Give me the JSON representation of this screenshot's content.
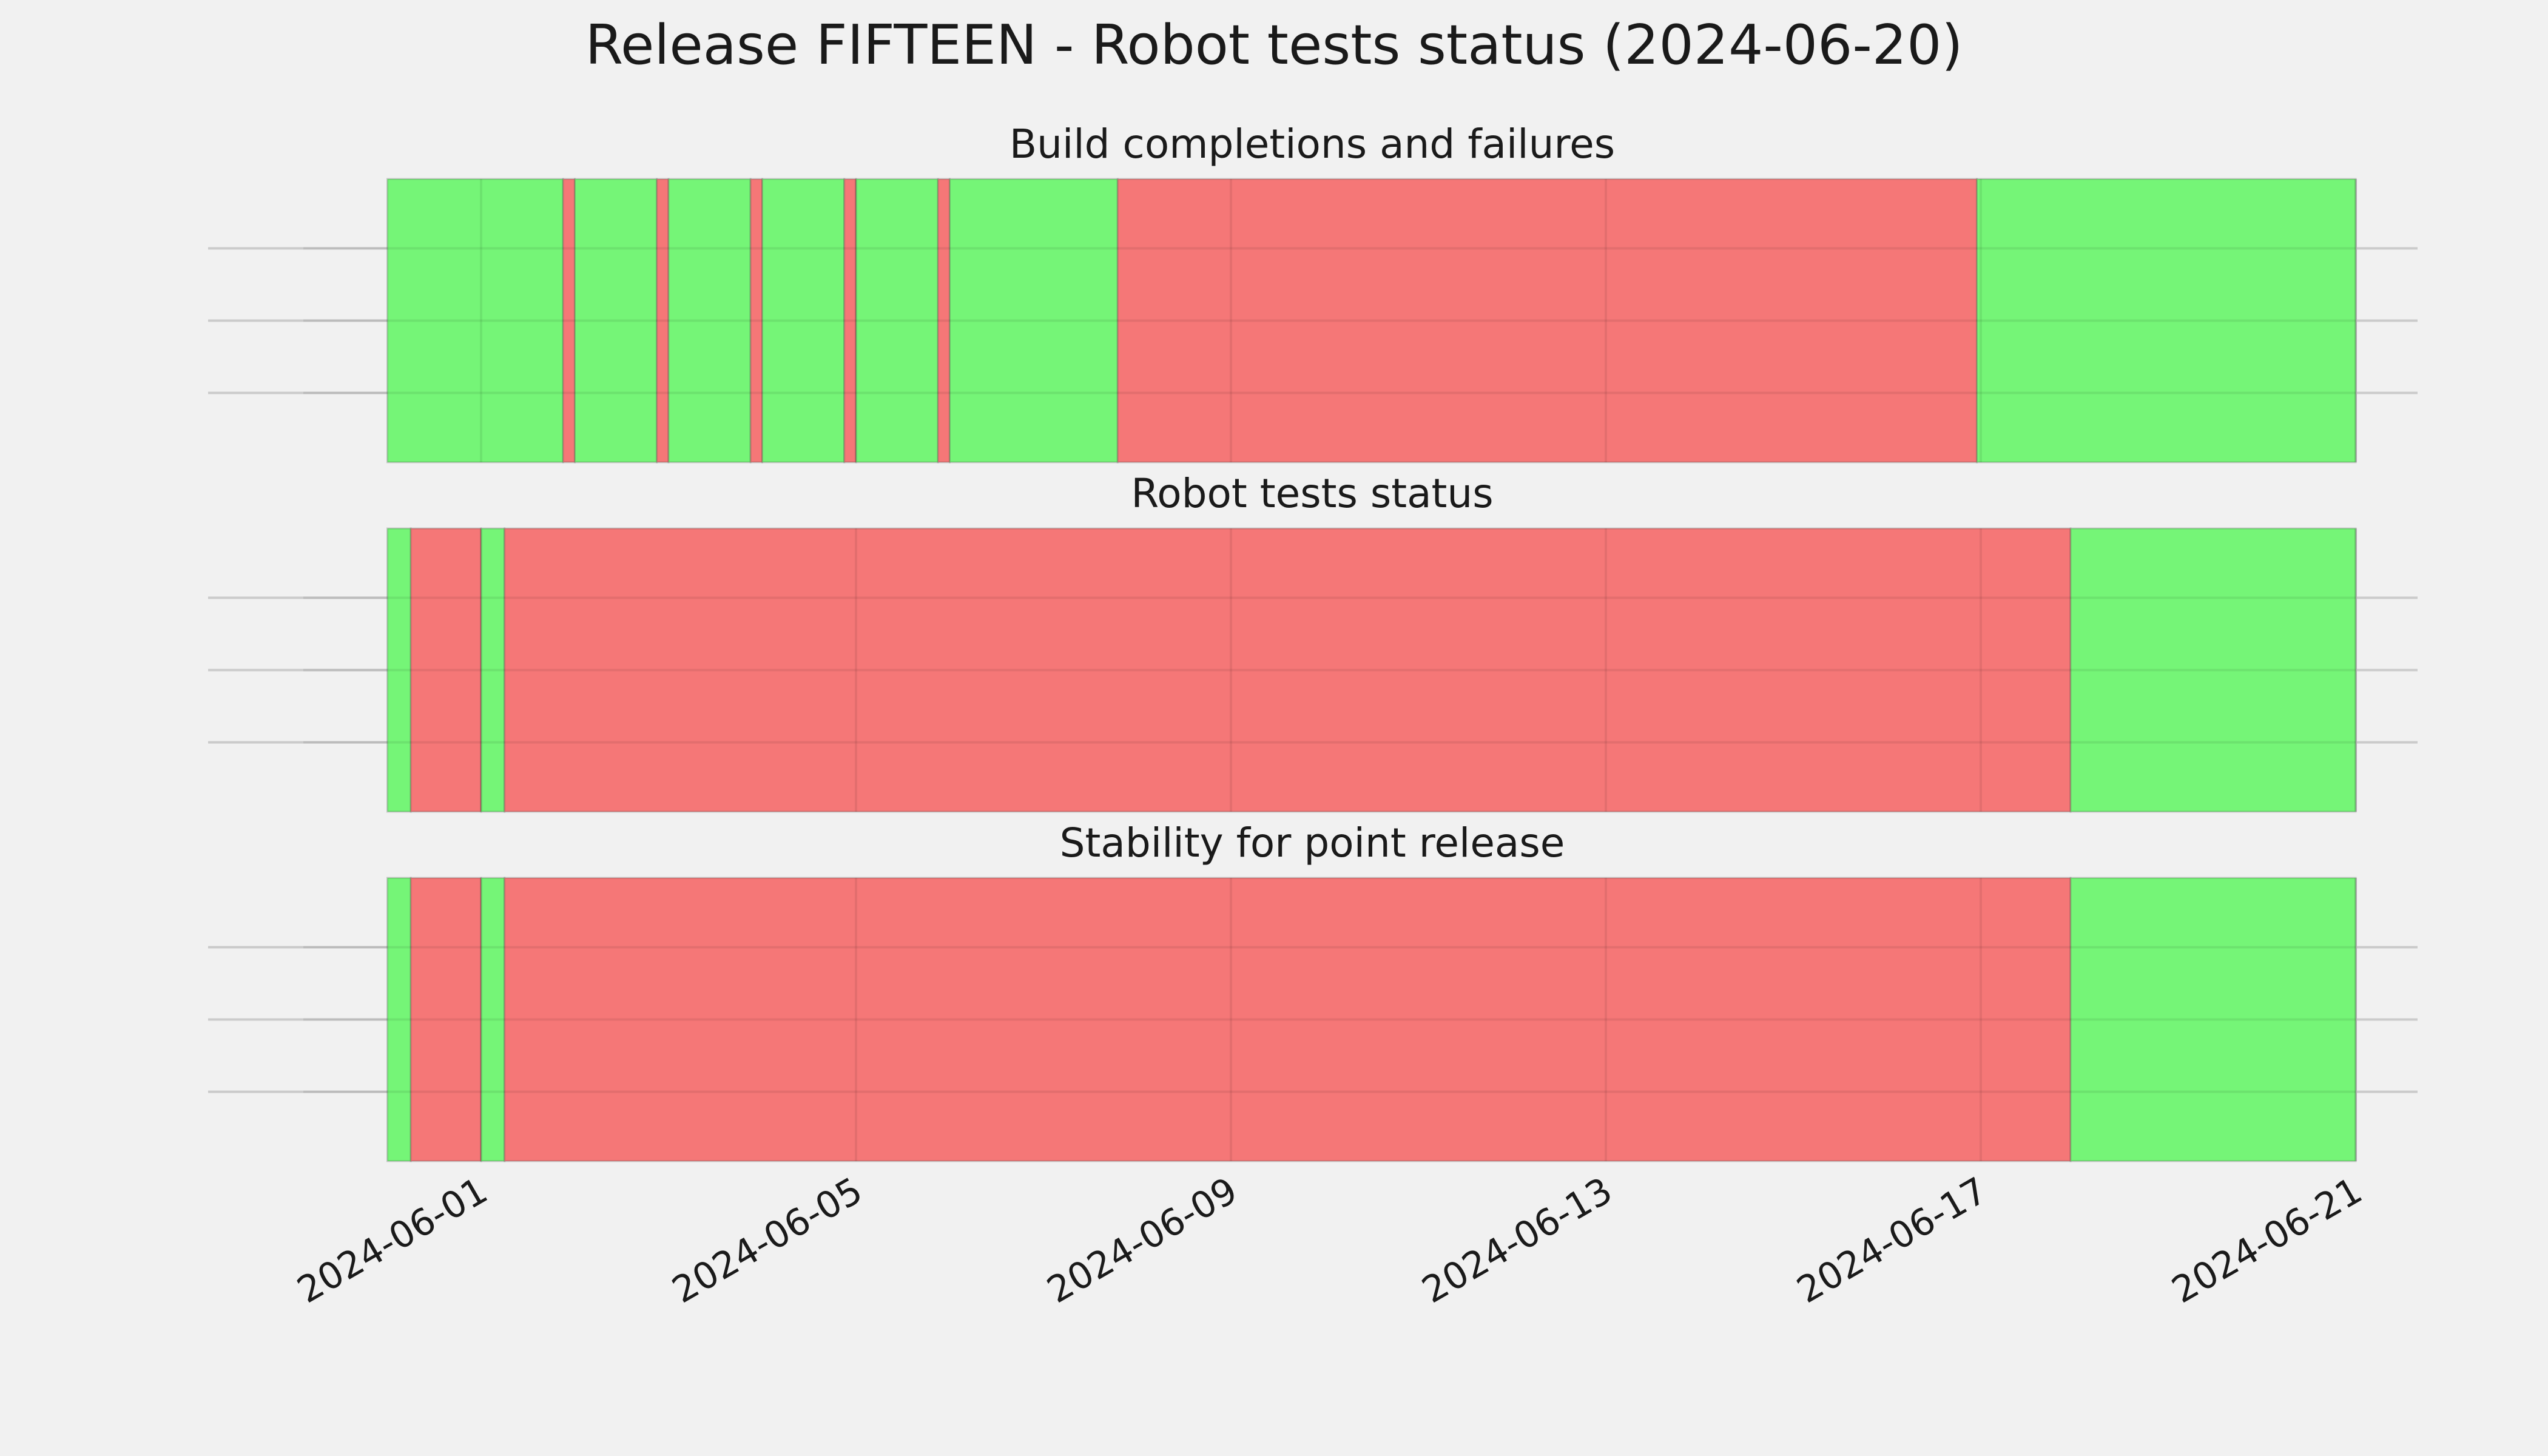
{
  "colors": {
    "background": "#f1f1f1",
    "pass": "#75f577",
    "fail": "#f57777",
    "grid": "#cbcbcb",
    "text": "#1a1a1a"
  },
  "chart_data": {
    "type": "timeline",
    "title": "Release FIFTEEN - Robot tests status (2024-06-20)",
    "grid": true,
    "x_axis": {
      "tick_labels": [
        "2024-06-01",
        "2024-06-05",
        "2024-06-09",
        "2024-06-13",
        "2024-06-17",
        "2024-06-21"
      ],
      "range": [
        "2024-05-30 03:00",
        "2024-06-21 00:00"
      ]
    },
    "panels": [
      {
        "title": "Build completions and failures",
        "segments": [
          {
            "start": "2024-05-31 00:00",
            "end": "2024-06-01 21:00",
            "status": "pass"
          },
          {
            "start": "2024-06-01 21:00",
            "end": "2024-06-02 00:00",
            "status": "fail"
          },
          {
            "start": "2024-06-02 00:00",
            "end": "2024-06-02 21:00",
            "status": "pass"
          },
          {
            "start": "2024-06-02 21:00",
            "end": "2024-06-03 00:00",
            "status": "fail"
          },
          {
            "start": "2024-06-03 00:00",
            "end": "2024-06-03 21:00",
            "status": "pass"
          },
          {
            "start": "2024-06-03 21:00",
            "end": "2024-06-04 00:00",
            "status": "fail"
          },
          {
            "start": "2024-06-04 00:00",
            "end": "2024-06-04 21:00",
            "status": "pass"
          },
          {
            "start": "2024-06-04 21:00",
            "end": "2024-06-05 00:00",
            "status": "fail"
          },
          {
            "start": "2024-06-05 00:00",
            "end": "2024-06-05 21:00",
            "status": "pass"
          },
          {
            "start": "2024-06-05 21:00",
            "end": "2024-06-06 00:00",
            "status": "fail"
          },
          {
            "start": "2024-06-06 00:00",
            "end": "2024-06-07 19:00",
            "status": "pass"
          },
          {
            "start": "2024-06-07 19:00",
            "end": "2024-06-16 23:00",
            "status": "fail"
          },
          {
            "start": "2024-06-16 23:00",
            "end": "2024-06-21 00:00",
            "status": "pass"
          }
        ]
      },
      {
        "title": "Robot tests status",
        "segments": [
          {
            "start": "2024-05-31 00:00",
            "end": "2024-05-31 06:00",
            "status": "pass"
          },
          {
            "start": "2024-05-31 06:00",
            "end": "2024-06-01 00:00",
            "status": "fail"
          },
          {
            "start": "2024-06-01 00:00",
            "end": "2024-06-01 06:00",
            "status": "pass"
          },
          {
            "start": "2024-06-01 06:00",
            "end": "2024-06-17 23:00",
            "status": "fail"
          },
          {
            "start": "2024-06-17 23:00",
            "end": "2024-06-21 00:00",
            "status": "pass"
          }
        ]
      },
      {
        "title": "Stability for point release",
        "segments": [
          {
            "start": "2024-05-31 00:00",
            "end": "2024-05-31 06:00",
            "status": "pass"
          },
          {
            "start": "2024-05-31 06:00",
            "end": "2024-06-01 00:00",
            "status": "fail"
          },
          {
            "start": "2024-06-01 00:00",
            "end": "2024-06-01 06:00",
            "status": "pass"
          },
          {
            "start": "2024-06-01 06:00",
            "end": "2024-06-17 23:00",
            "status": "fail"
          },
          {
            "start": "2024-06-17 23:00",
            "end": "2024-06-21 00:00",
            "status": "pass"
          }
        ]
      }
    ]
  }
}
